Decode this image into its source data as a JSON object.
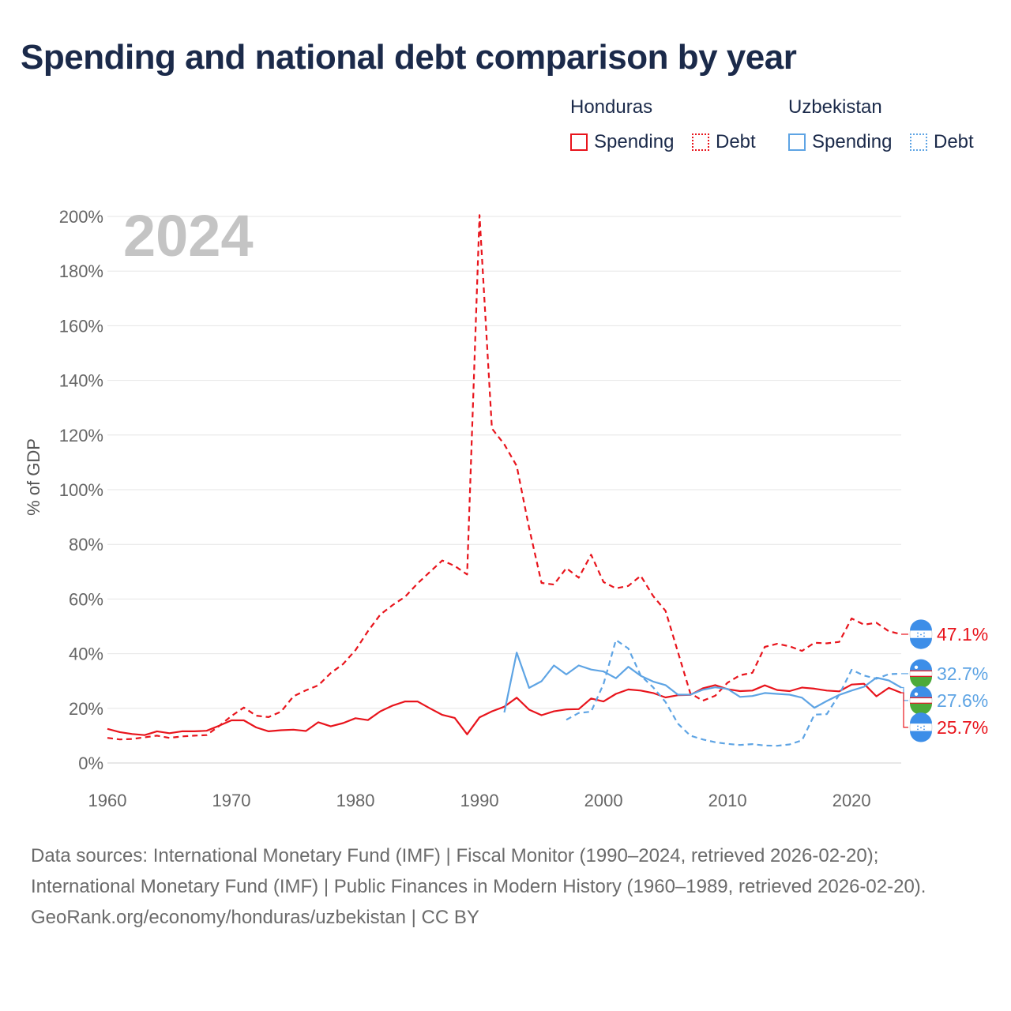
{
  "title": "Spending and national debt comparison by year",
  "legend": {
    "groups": [
      {
        "country": "Honduras",
        "color": "#e8141c",
        "items": [
          {
            "label": "Spending",
            "style": "solid"
          },
          {
            "label": "Debt",
            "style": "dotted"
          }
        ]
      },
      {
        "country": "Uzbekistan",
        "color": "#5ea4e4",
        "items": [
          {
            "label": "Spending",
            "style": "solid"
          },
          {
            "label": "Debt",
            "style": "dotted"
          }
        ]
      }
    ]
  },
  "chart_data": {
    "type": "line",
    "year_watermark": "2024",
    "ylabel": "% of GDP",
    "xlim": [
      1960,
      2024
    ],
    "ylim": [
      0,
      200
    ],
    "x_ticks": [
      1960,
      1970,
      1980,
      1990,
      2000,
      2010,
      2020
    ],
    "y_ticks": [
      0,
      20,
      40,
      60,
      80,
      100,
      120,
      140,
      160,
      180,
      200
    ],
    "y_tick_labels": [
      "0%",
      "20%",
      "40%",
      "60%",
      "80%",
      "100%",
      "120%",
      "140%",
      "160%",
      "180%",
      "200%"
    ],
    "series": [
      {
        "name": "Honduras Spending",
        "country": "Honduras",
        "metric": "Spending",
        "color": "#e8141c",
        "dash": "solid",
        "start": 1960,
        "values": [
          12.5,
          11.3,
          10.6,
          10.2,
          11.6,
          10.9,
          11.6,
          11.6,
          11.8,
          13.6,
          15.6,
          15.6,
          13.0,
          11.6,
          12.0,
          12.2,
          11.7,
          14.9,
          13.4,
          14.6,
          16.4,
          15.7,
          18.9,
          21.0,
          22.5,
          22.5,
          20.0,
          17.6,
          16.5,
          10.5,
          16.7,
          18.9,
          20.6,
          23.9,
          19.5,
          17.5,
          18.9,
          19.6,
          19.7,
          23.6,
          22.5,
          25.3,
          26.9,
          26.5,
          25.6,
          24.0,
          24.8,
          24.9,
          27.3,
          28.5,
          27.0,
          26.3,
          26.5,
          28.4,
          26.7,
          26.3,
          27.6,
          27.2,
          26.5,
          26.2,
          28.7,
          29.0,
          24.4,
          27.5,
          25.7
        ]
      },
      {
        "name": "Honduras Debt",
        "country": "Honduras",
        "metric": "Debt",
        "color": "#e8141c",
        "dash": "dashed",
        "start": 1960,
        "values": [
          9.2,
          8.6,
          8.8,
          9.4,
          10.0,
          9.2,
          9.7,
          10.0,
          10.2,
          13.5,
          17.2,
          20.3,
          17.3,
          16.8,
          18.8,
          24.4,
          26.6,
          28.4,
          32.9,
          36.2,
          41.3,
          48.2,
          54.3,
          57.8,
          60.8,
          65.7,
          69.9,
          74.1,
          72.1,
          69.0,
          200.5,
          122.4,
          116.6,
          108.7,
          86.0,
          65.9,
          65.3,
          71.3,
          67.8,
          76.2,
          66.2,
          63.9,
          64.8,
          68.5,
          61.1,
          55.7,
          40.6,
          25.5,
          22.8,
          24.6,
          29.4,
          32.1,
          33.0,
          42.5,
          43.6,
          42.7,
          41.0,
          44.0,
          43.8,
          44.3,
          52.9,
          50.6,
          51.3,
          48.2,
          47.1
        ]
      },
      {
        "name": "Uzbekistan Spending",
        "country": "Uzbekistan",
        "metric": "Spending",
        "color": "#5ea4e4",
        "dash": "solid",
        "start": 1992,
        "values": [
          18.5,
          40.4,
          27.5,
          29.9,
          35.7,
          32.4,
          35.7,
          34.2,
          33.5,
          31.0,
          35.2,
          31.9,
          29.8,
          28.5,
          25.0,
          25.0,
          26.8,
          27.7,
          27.1,
          24.2,
          24.5,
          25.6,
          25.3,
          25.0,
          23.9,
          20.2,
          22.7,
          24.9,
          26.5,
          27.9,
          31.2,
          30.2,
          27.6
        ]
      },
      {
        "name": "Uzbekistan Debt",
        "country": "Uzbekistan",
        "metric": "Debt",
        "color": "#5ea4e4",
        "dash": "dashed",
        "start": 1997,
        "values": [
          15.8,
          18.3,
          18.8,
          28.9,
          45.0,
          41.9,
          32.0,
          27.7,
          22.3,
          14.4,
          10.0,
          8.6,
          7.6,
          7.0,
          6.6,
          6.9,
          6.4,
          6.3,
          6.8,
          8.3,
          17.7,
          17.9,
          25.0,
          34.1,
          32.0,
          30.8,
          32.5,
          32.7
        ]
      }
    ],
    "end_labels": [
      {
        "series": "Honduras Debt",
        "text": "47.1%",
        "value": 47.1,
        "color": "#e8141c",
        "flag": "honduras-flag-icon"
      },
      {
        "series": "Uzbekistan Debt",
        "text": "32.7%",
        "value": 32.7,
        "color": "#5ea4e4",
        "flag": "uzbekistan-flag-icon"
      },
      {
        "series": "Uzbekistan Spending",
        "text": "27.6%",
        "value": 27.6,
        "color": "#5ea4e4",
        "flag": "uzbekistan-flag-icon"
      },
      {
        "series": "Honduras Spending",
        "text": "25.7%",
        "value": 25.7,
        "color": "#e8141c",
        "flag": "honduras-flag-icon"
      }
    ]
  },
  "footer": {
    "sources": "Data sources: International Monetary Fund (IMF) | Fiscal Monitor (1990–2024, retrieved 2026-02-20); International Monetary Fund (IMF) | Public Finances in Modern History (1960–1989, retrieved 2026-02-20).",
    "credit": "GeoRank.org/economy/honduras/uzbekistan | CC BY"
  }
}
